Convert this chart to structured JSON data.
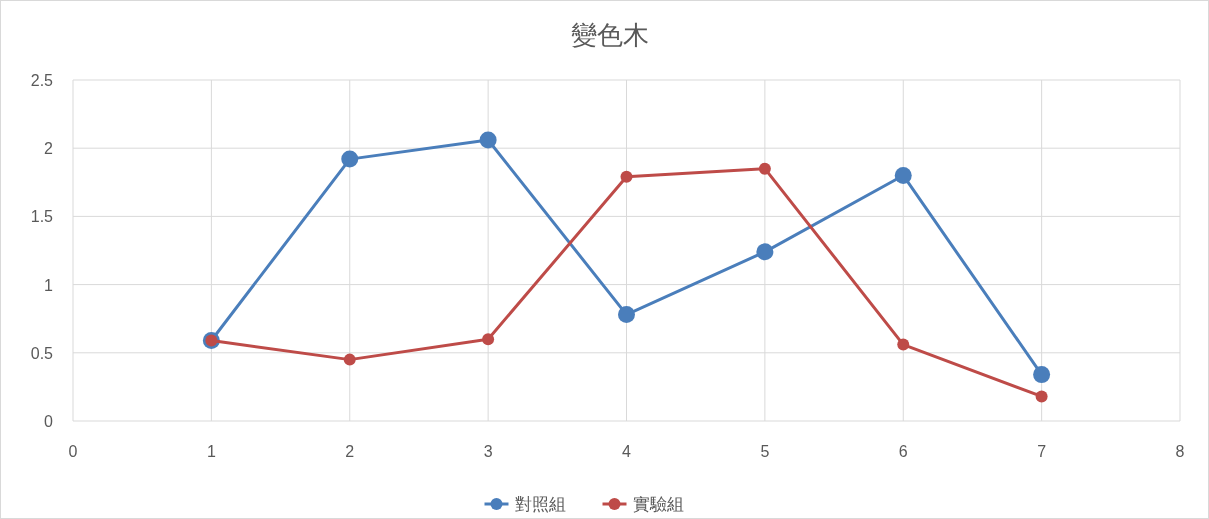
{
  "chart_data": {
    "type": "line",
    "title": "變色木",
    "x": [
      1,
      2,
      3,
      4,
      5,
      6,
      7
    ],
    "series": [
      {
        "name": "對照組",
        "color": "#4a7ebb",
        "values": [
          0.59,
          1.92,
          2.06,
          0.78,
          1.24,
          1.8,
          0.34
        ]
      },
      {
        "name": "實驗組",
        "color": "#be4b48",
        "values": [
          0.59,
          0.45,
          0.6,
          1.79,
          1.85,
          0.56,
          0.18
        ]
      }
    ],
    "xlim": [
      0,
      8
    ],
    "xticks": [
      0,
      1,
      2,
      3,
      4,
      5,
      6,
      7,
      8
    ],
    "ylim": [
      0,
      2.5
    ],
    "yticks": [
      0,
      0.5,
      1,
      1.5,
      2,
      2.5
    ],
    "grid": true,
    "legend": "bottom",
    "marker": "circle",
    "line_style": "solid"
  }
}
